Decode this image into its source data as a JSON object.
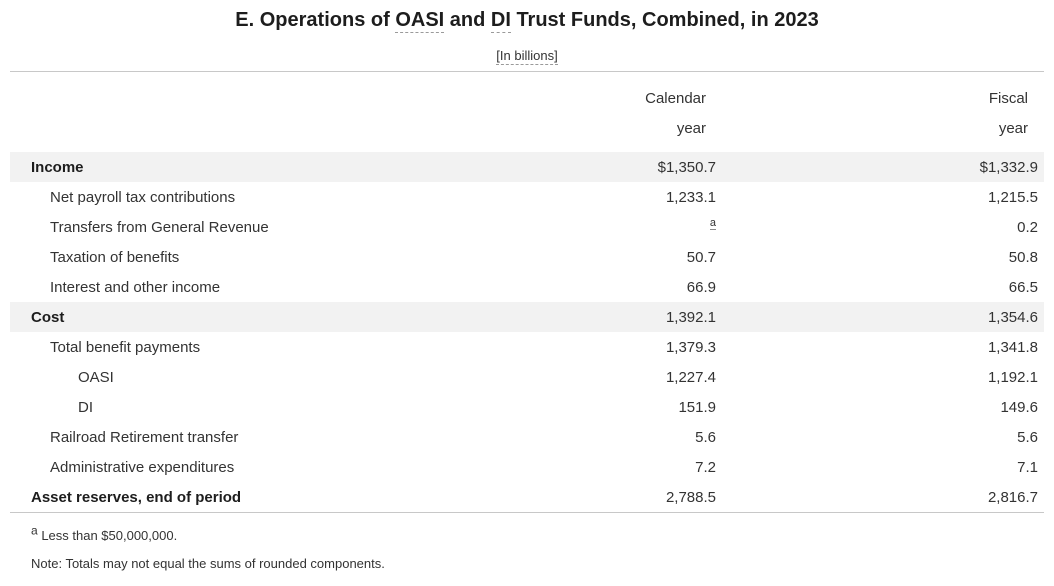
{
  "title": {
    "prefix": "E. Operations of ",
    "abbr_oasi": "OASI",
    "mid": " and ",
    "abbr_di": "DI",
    "suffix": " Trust Funds, Combined, in 2023"
  },
  "subtitle": "[In billions]",
  "header": {
    "calendar": {
      "line1": "Calendar",
      "line2": "year"
    },
    "fiscal": {
      "line1": "Fiscal",
      "line2": "year"
    }
  },
  "chart_data": {
    "type": "table",
    "title": "E. Operations of OASI and DI Trust Funds, Combined, in 2023",
    "subtitle": "[In billions]",
    "columns": [
      "",
      "Calendar year",
      "Fiscal year"
    ],
    "rows": [
      {
        "label": "Income",
        "indent": 0,
        "calendar": "$1,350.7",
        "fiscal": "$1,332.9"
      },
      {
        "label": "Net payroll tax contributions",
        "indent": 1,
        "calendar": "1,233.1",
        "fiscal": "1,215.5"
      },
      {
        "label": "Transfers from General Revenue",
        "indent": 1,
        "calendar": "",
        "footnote_ref": "a",
        "fiscal": "0.2"
      },
      {
        "label": "Taxation of benefits",
        "indent": 1,
        "calendar": "50.7",
        "fiscal": "50.8"
      },
      {
        "label": "Interest and other income",
        "indent": 1,
        "calendar": "66.9",
        "fiscal": "66.5"
      },
      {
        "label": "Cost",
        "indent": 0,
        "calendar": "1,392.1",
        "fiscal": "1,354.6"
      },
      {
        "label": "Total benefit payments",
        "indent": 1,
        "calendar": "1,379.3",
        "fiscal": "1,341.8"
      },
      {
        "label": "OASI",
        "indent": 2,
        "calendar": "1,227.4",
        "fiscal": "1,192.1"
      },
      {
        "label": "DI",
        "indent": 2,
        "calendar": "151.9",
        "fiscal": "149.6"
      },
      {
        "label": "Railroad Retirement transfer",
        "indent": 1,
        "calendar": "5.6",
        "fiscal": "5.6"
      },
      {
        "label": "Administrative expenditures",
        "indent": 1,
        "calendar": "7.2",
        "fiscal": "7.1"
      },
      {
        "label": "Asset reserves, end of period",
        "indent": 0,
        "calendar": "2,788.5",
        "fiscal": "2,816.7"
      }
    ]
  },
  "footnotes": {
    "marker": "a",
    "marker_text": "Less than $50,000,000.",
    "note": "Note: Totals may not equal the sums of rounded components."
  },
  "colors": {
    "shaded_row": "#f2f2f2",
    "rule": "#c8c8c8",
    "text": "#333333",
    "bold_text": "#1d1d1d"
  }
}
